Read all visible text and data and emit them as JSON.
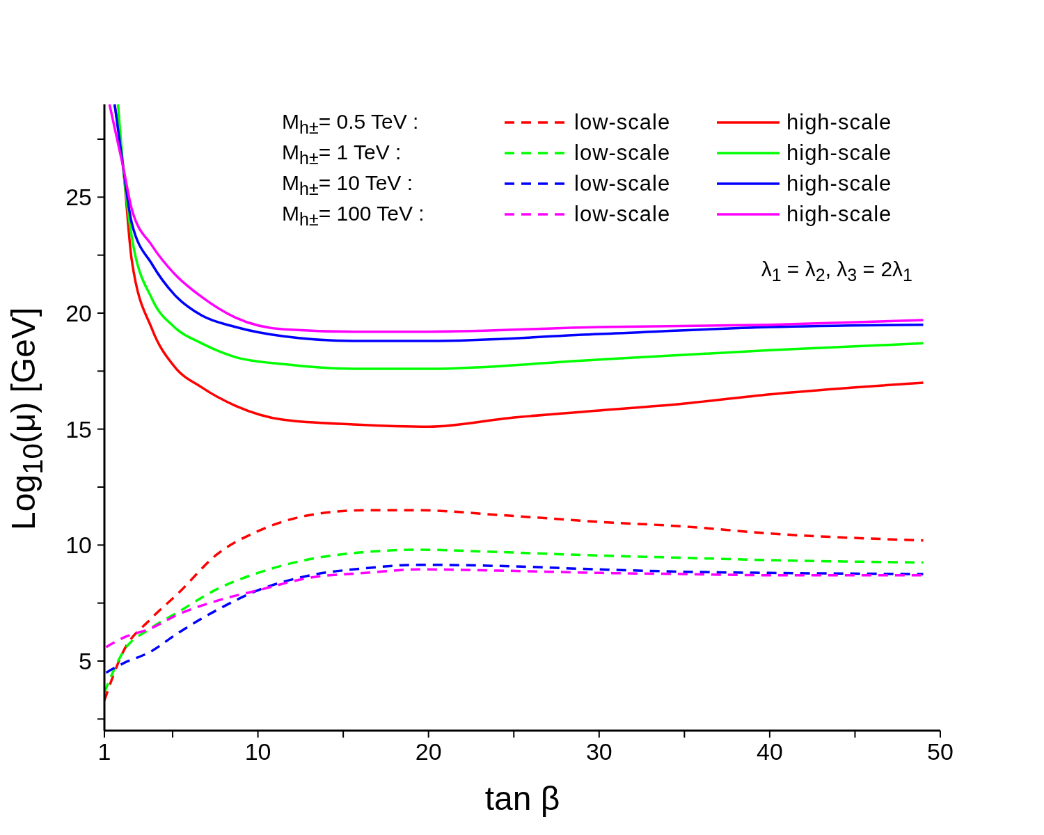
{
  "chart_data": {
    "type": "line",
    "xlabel": "tan β",
    "ylabel": "Log$_{10}$(μ) [GeV]",
    "xlim": [
      1,
      50
    ],
    "ylim": [
      2,
      29
    ],
    "xticks": [
      1,
      {
        "value": 5,
        "label": null
      },
      10,
      {
        "value": 15,
        "label": null
      },
      20,
      {
        "value": 25,
        "label": null
      },
      30,
      {
        "value": 35,
        "label": null
      },
      40,
      {
        "value": 45,
        "label": null
      },
      50
    ],
    "yticks": [
      {
        "value": 2.5,
        "label": null
      },
      5,
      {
        "value": 7.5,
        "label": null
      },
      10,
      {
        "value": 12.5,
        "label": null
      },
      15,
      {
        "value": 17.5,
        "label": null
      },
      20,
      {
        "value": 22.5,
        "label": null
      },
      25,
      {
        "value": 27.5,
        "label": null
      }
    ],
    "legend": "top right",
    "annotations": [
      "M$_{h±}$= 0.5 TeV :",
      "M$_{h±}$= 1 TeV :",
      "M$_{h±}$= 10 TeV :",
      "M$_{h±}$= 100 TeV :",
      "λ$_{1}$ = λ$_{2}$, λ$_{3}$ = 2λ$_{1}$"
    ],
    "series": [
      {
        "name": "low-scale",
        "color": "#ff0000",
        "line_style": "dashed",
        "x": [
          1,
          2.1,
          3.7,
          5.3,
          7.6,
          10,
          13.1,
          16.3,
          19.4,
          24.1,
          30,
          35,
          40,
          49
        ],
        "values": [
          3.3,
          5.4,
          6.8,
          7.9,
          9.6,
          10.6,
          11.3,
          11.5,
          11.5,
          11.3,
          11.0,
          10.8,
          10.5,
          10.2
        ]
      },
      {
        "name": "high-scale",
        "color": "#ff0000",
        "line_style": "solid",
        "x": [
          1.6,
          2.1,
          2.6,
          3.8,
          5.1,
          6.7,
          8.7,
          11.5,
          15.6,
          20,
          25,
          30,
          35,
          40,
          45,
          49
        ],
        "values": [
          29,
          26.3,
          22.3,
          19.3,
          17.7,
          16.8,
          16.0,
          15.4,
          15.2,
          15.1,
          15.5,
          15.8,
          16.1,
          16.5,
          16.8,
          17.0
        ]
      },
      {
        "name": "low-scale",
        "color": "#00ff00",
        "line_style": "dashed",
        "x": [
          1,
          2.1,
          3.7,
          5.3,
          7.6,
          10,
          13.1,
          16.3,
          19.4,
          24.1,
          30,
          35,
          40,
          49
        ],
        "values": [
          3.65,
          5.4,
          6.4,
          7.1,
          8.1,
          8.8,
          9.4,
          9.7,
          9.8,
          9.7,
          9.55,
          9.45,
          9.35,
          9.25
        ]
      },
      {
        "name": "high-scale",
        "color": "#00ff00",
        "line_style": "solid",
        "x": [
          1.8,
          2.1,
          2.6,
          3.8,
          5.1,
          6.7,
          8.7,
          11.5,
          15.6,
          20,
          30,
          40,
          49
        ],
        "values": [
          29,
          26.3,
          23.3,
          20.6,
          19.4,
          18.7,
          18.1,
          17.8,
          17.6,
          17.6,
          18.0,
          18.4,
          18.7
        ]
      },
      {
        "name": "low-scale",
        "color": "#0000ff",
        "line_style": "dashed",
        "x": [
          1.1,
          2.1,
          3.7,
          5.3,
          7.6,
          10,
          13.1,
          16.3,
          19.4,
          24.1,
          30,
          35,
          40,
          49
        ],
        "values": [
          4.5,
          4.9,
          5.4,
          6.2,
          7.2,
          8.05,
          8.7,
          9.0,
          9.15,
          9.1,
          8.95,
          8.85,
          8.8,
          8.75
        ]
      },
      {
        "name": "high-scale",
        "color": "#0000ff",
        "line_style": "solid",
        "x": [
          1.6,
          2.1,
          2.6,
          3.8,
          5.1,
          6.7,
          8.7,
          11.5,
          15.6,
          20,
          30,
          40,
          49
        ],
        "values": [
          29,
          26.3,
          23.9,
          22.1,
          20.8,
          19.9,
          19.4,
          19.0,
          18.8,
          18.8,
          19.1,
          19.4,
          19.5
        ]
      },
      {
        "name": "low-scale",
        "color": "#ff00ff",
        "line_style": "dashed",
        "x": [
          1.1,
          2.1,
          3.7,
          5.3,
          7.6,
          10,
          13.1,
          16.3,
          19.4,
          24.1,
          30,
          35,
          40,
          49
        ],
        "values": [
          5.6,
          6.0,
          6.4,
          7.0,
          7.6,
          8.05,
          8.6,
          8.8,
          8.95,
          8.9,
          8.8,
          8.75,
          8.7,
          8.7
        ]
      },
      {
        "name": "high-scale",
        "color": "#ff00ff",
        "line_style": "solid",
        "x": [
          1.3,
          2.1,
          2.6,
          3.8,
          5.1,
          6.7,
          8.7,
          11.5,
          15.6,
          20,
          30,
          40,
          49
        ],
        "values": [
          29,
          26.3,
          24.5,
          22.9,
          21.7,
          20.7,
          19.8,
          19.3,
          19.2,
          19.2,
          19.4,
          19.5,
          19.7
        ]
      }
    ]
  }
}
